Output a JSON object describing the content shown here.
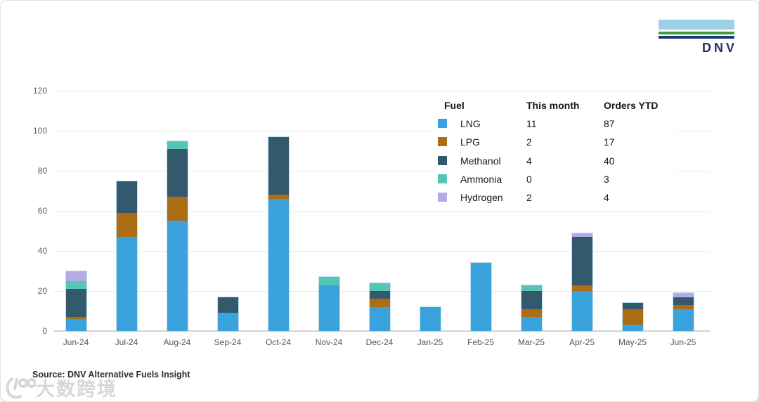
{
  "logo": {
    "text": "DNV"
  },
  "legend": {
    "headers": {
      "fuel": "Fuel",
      "this_month": "This month",
      "orders_ytd": "Orders YTD"
    },
    "rows": [
      {
        "fuel": "LNG",
        "this_month": "11",
        "orders_ytd": "87",
        "color": "#3AA2DC"
      },
      {
        "fuel": "LPG",
        "this_month": "2",
        "orders_ytd": "17",
        "color": "#AD6D12"
      },
      {
        "fuel": "Methanol",
        "this_month": "4",
        "orders_ytd": "40",
        "color": "#33596C"
      },
      {
        "fuel": "Ammonia",
        "this_month": "0",
        "orders_ytd": "3",
        "color": "#55C6B4"
      },
      {
        "fuel": "Hydrogen",
        "this_month": "2",
        "orders_ytd": "4",
        "color": "#B1ADE4"
      }
    ]
  },
  "chart_data": {
    "type": "bar",
    "stacked": true,
    "grid": true,
    "legend_position": "top-right",
    "categories": [
      "Jun-24",
      "Jul-24",
      "Aug-24",
      "Sep-24",
      "Oct-24",
      "Nov-24",
      "Dec-24",
      "Jan-25",
      "Feb-25",
      "Mar-25",
      "Apr-25",
      "May-25",
      "Jun-25"
    ],
    "series": [
      {
        "name": "LNG",
        "color": "#3AA2DC",
        "values": [
          6,
          47,
          55,
          9,
          66,
          23,
          12,
          12,
          34,
          7,
          20,
          3,
          11
        ]
      },
      {
        "name": "LPG",
        "color": "#AD6D12",
        "values": [
          1,
          12,
          12,
          0,
          2,
          0,
          4,
          0,
          0,
          4,
          3,
          8,
          2
        ]
      },
      {
        "name": "Methanol",
        "color": "#33596C",
        "values": [
          14,
          16,
          24,
          8,
          29,
          0,
          4,
          0,
          0,
          9,
          24,
          3,
          4
        ]
      },
      {
        "name": "Ammonia",
        "color": "#55C6B4",
        "values": [
          4,
          0,
          4,
          0,
          0,
          4,
          4,
          0,
          0,
          3,
          0,
          0,
          0
        ]
      },
      {
        "name": "Hydrogen",
        "color": "#B1ADE4",
        "values": [
          5,
          0,
          0,
          0,
          0,
          0,
          0,
          0,
          0,
          0,
          2,
          0,
          2
        ]
      }
    ],
    "totals": [
      30,
      75,
      95,
      17,
      97,
      27,
      24,
      12,
      34,
      23,
      49,
      14,
      19
    ],
    "yticks": [
      0,
      20,
      40,
      60,
      80,
      100,
      120
    ],
    "ylim": [
      0,
      120
    ],
    "xlabel": "",
    "ylabel": ""
  },
  "source": {
    "label": "Source: DNV Alternative Fuels Insight"
  },
  "watermark": {
    "text": "大数跨境"
  }
}
